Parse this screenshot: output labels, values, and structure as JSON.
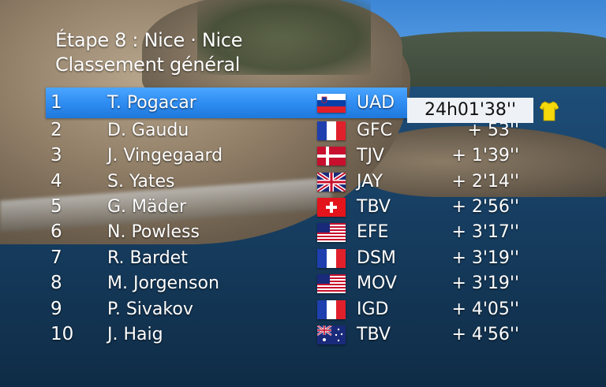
{
  "header": {
    "stage": "Étape 8 : Nice · Nice",
    "classification": "Classement général"
  },
  "standings": [
    {
      "rank": "1",
      "rider": "T. Pogacar",
      "flag": "slovenia-flag",
      "team": "UAD",
      "time": "24h01'38''"
    },
    {
      "rank": "2",
      "rider": "D. Gaudu",
      "flag": "france-flag",
      "team": "GFC",
      "time": "+ 53''"
    },
    {
      "rank": "3",
      "rider": "J. Vingegaard",
      "flag": "denmark-flag",
      "team": "TJV",
      "time": "+ 1'39''"
    },
    {
      "rank": "4",
      "rider": "S. Yates",
      "flag": "uk-flag",
      "team": "JAY",
      "time": "+ 2'14''"
    },
    {
      "rank": "5",
      "rider": "G. Mäder",
      "flag": "switzerland-flag",
      "team": "TBV",
      "time": "+ 2'56''"
    },
    {
      "rank": "6",
      "rider": "N. Powless",
      "flag": "usa-flag",
      "team": "EFE",
      "time": "+ 3'17''"
    },
    {
      "rank": "7",
      "rider": "R. Bardet",
      "flag": "france-flag",
      "team": "DSM",
      "time": "+ 3'19''"
    },
    {
      "rank": "8",
      "rider": "M. Jorgenson",
      "flag": "usa-flag",
      "team": "MOV",
      "time": "+ 3'19''"
    },
    {
      "rank": "9",
      "rider": "P. Sivakov",
      "flag": "france-flag",
      "team": "IGD",
      "time": "+ 4'05''"
    },
    {
      "rank": "10",
      "rider": "J. Haig",
      "flag": "australia-flag",
      "team": "TBV",
      "time": "+ 4'56''"
    }
  ],
  "leader_jersey_icon": "yellow-jersey-icon",
  "colors": {
    "leader_bar": "#2f8df2",
    "leader_time_bg": "#eef2f6",
    "jersey": "#f5d90a"
  }
}
